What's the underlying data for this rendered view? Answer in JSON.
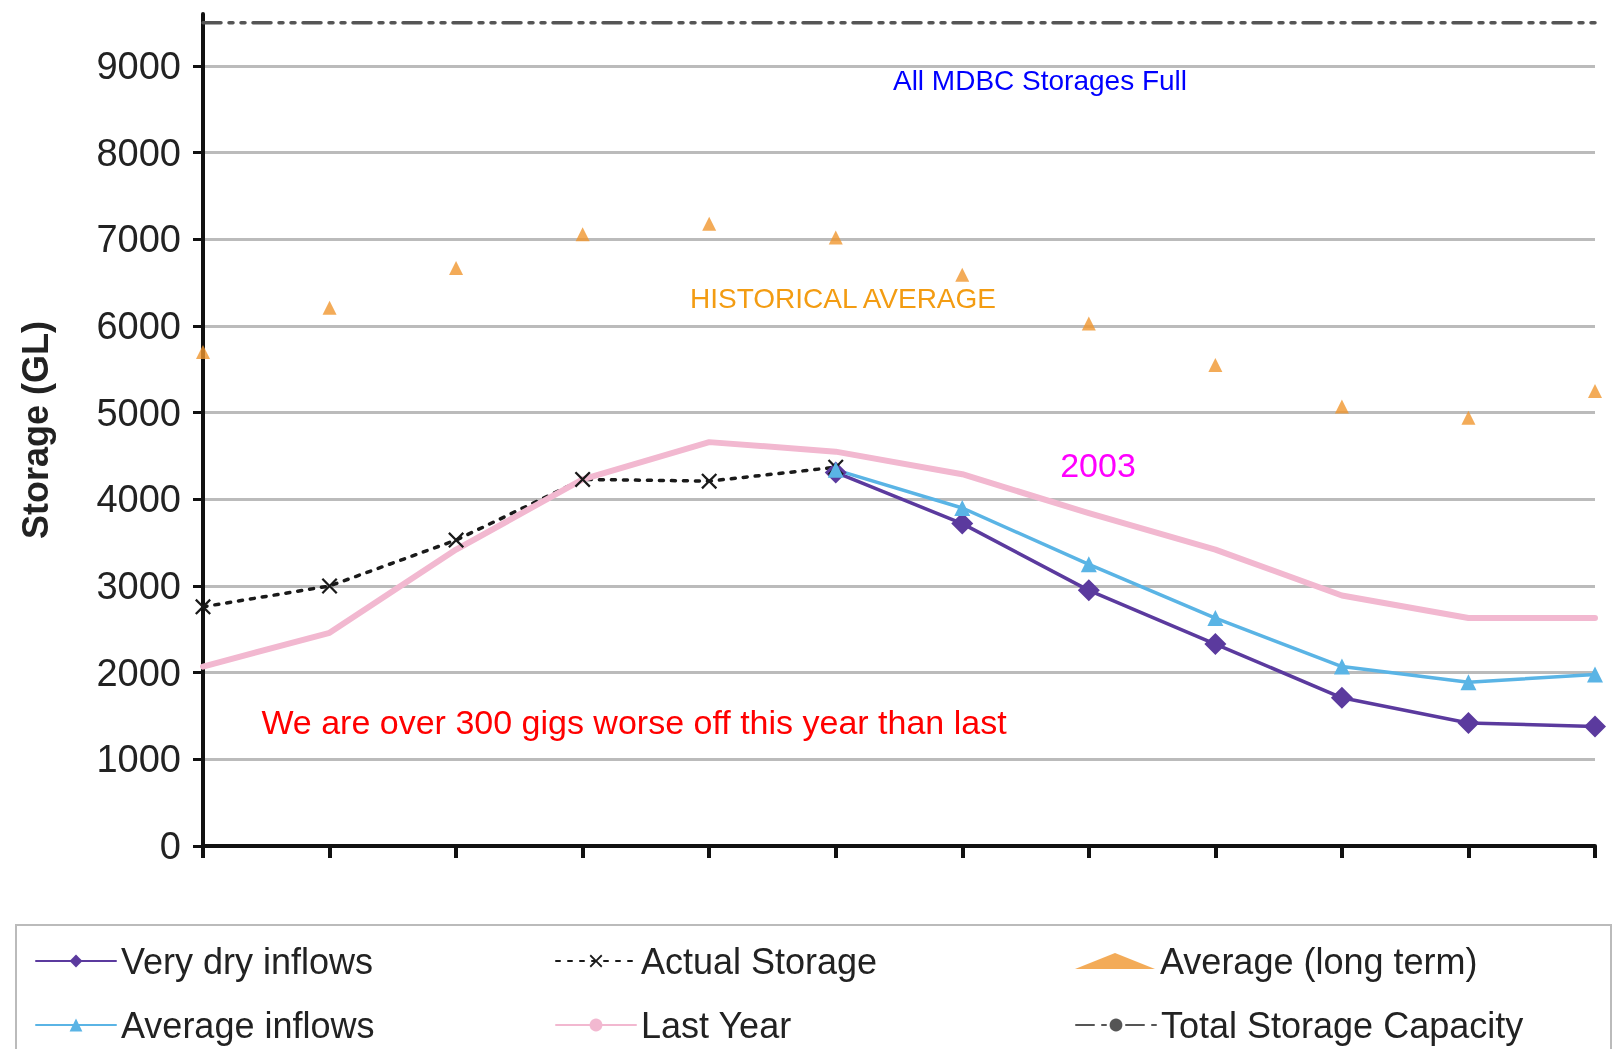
{
  "chart_data": {
    "type": "line",
    "ylabel": "Storage (GL)",
    "categories": [
      null,
      null,
      null,
      null,
      null,
      null,
      null,
      null,
      null,
      null,
      null,
      null
    ],
    "series": [
      {
        "name": "Very dry inflows",
        "color": "#5b3a9e",
        "marker": "diamond",
        "line_style": "solid",
        "values": [
          null,
          null,
          null,
          null,
          null,
          4310,
          3720,
          2950,
          2330,
          1710,
          1420,
          1380
        ]
      },
      {
        "name": "Actual Storage",
        "color": "#1a1a1a",
        "marker": "cross",
        "line_style": "dotted",
        "values": [
          2760,
          3000,
          3530,
          4230,
          4210,
          4370,
          null,
          null,
          null,
          null,
          null,
          null
        ]
      },
      {
        "name": "Average (long term)",
        "type": "scatter",
        "color": "#f0962e",
        "marker": "triangle",
        "values": [
          5700,
          6210,
          6670,
          7060,
          7180,
          7020,
          6590,
          6030,
          5550,
          5070,
          4940,
          5250
        ]
      },
      {
        "name": "Average inflows",
        "color": "#5ab4e5",
        "marker": "triangle",
        "line_style": "solid",
        "values": [
          null,
          null,
          null,
          null,
          null,
          4340,
          3900,
          3250,
          2630,
          2070,
          1890,
          1980
        ]
      },
      {
        "name": "Last Year",
        "color": "#f2b8d0",
        "marker": "none",
        "line_style": "solid",
        "values": [
          2070,
          2460,
          3420,
          4230,
          4660,
          4550,
          4290,
          3840,
          3420,
          2890,
          2630,
          2630
        ]
      },
      {
        "name": "Total Storage Capacity",
        "color": "#555555",
        "marker": "none",
        "line_style": "dashed",
        "values": [
          9500,
          9500,
          9500,
          9500,
          9500,
          9500,
          9500,
          9500,
          9500,
          9500,
          9500,
          9500
        ]
      }
    ],
    "ylim": [
      0,
      9600
    ],
    "yticks": [
      0,
      1000,
      2000,
      3000,
      4000,
      5000,
      6000,
      7000,
      8000,
      9000
    ],
    "grid": "y",
    "legend": "bottom",
    "tick_labels": "y",
    "annotations": [
      "All MDBC Storages Full",
      "HISTORICAL AVERAGE",
      "2003",
      "We are over 300 gigs worse off this year than last"
    ]
  }
}
